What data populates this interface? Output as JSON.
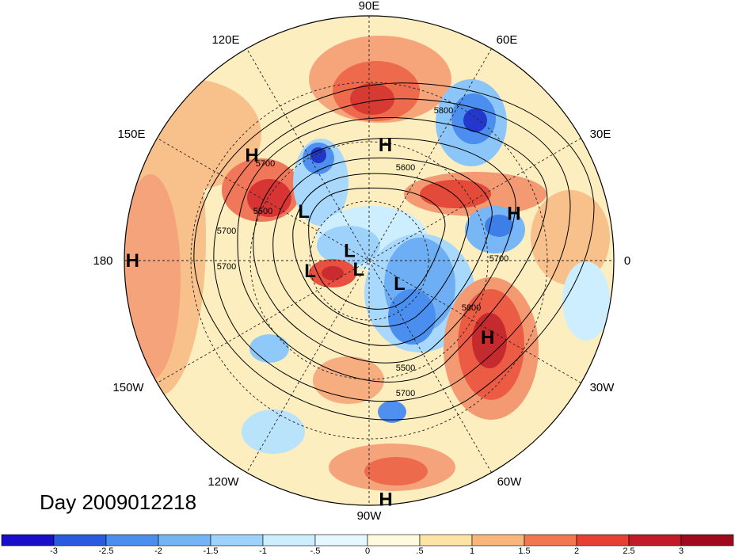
{
  "title": "Day 2009012218",
  "longitude_labels": [
    "90E",
    "60E",
    "30E",
    "0",
    "30W",
    "60W",
    "90W",
    "120W",
    "150W",
    "180",
    "150E",
    "120E"
  ],
  "pressure_centers": [
    {
      "label": "H",
      "lon_deg": 82,
      "lat_deg": 47
    },
    {
      "label": "H",
      "lon_deg": 138,
      "lat_deg": 32
    },
    {
      "label": "H",
      "lon_deg": 18,
      "lat_deg": 34
    },
    {
      "label": "H",
      "lon_deg": 180,
      "lat_deg": 3
    },
    {
      "label": "H",
      "lon_deg": -33,
      "lat_deg": 38
    },
    {
      "label": "H",
      "lon_deg": -86,
      "lat_deg": 2
    },
    {
      "label": "L",
      "lon_deg": 143,
      "lat_deg": 60
    },
    {
      "label": "L",
      "lon_deg": 153,
      "lat_deg": 82
    },
    {
      "label": "L",
      "lon_deg": -170,
      "lat_deg": 68
    },
    {
      "label": "L",
      "lon_deg": -140,
      "lat_deg": 85
    },
    {
      "label": "L",
      "lon_deg": -37,
      "lat_deg": 76
    }
  ],
  "contour_labels": [
    "5800",
    "5600",
    "5700",
    "5500",
    "5700",
    "5700",
    "5700",
    "5800",
    "5500",
    "5700"
  ],
  "colorbar": {
    "ticks": [
      "-3",
      "-2.5",
      "-2",
      "-1.5",
      "-1",
      "-.5",
      "0",
      ".5",
      "1",
      "1.5",
      "2",
      "2.5",
      "3"
    ],
    "colors": [
      "#1a0fc8",
      "#2a5ae0",
      "#4a8ef0",
      "#74b4f6",
      "#9fd2fa",
      "#cdeefe",
      "#e6f8ff",
      "#fffadf",
      "#fde4a6",
      "#f9b67a",
      "#f2774e",
      "#e64035",
      "#c11a28",
      "#a10a1e"
    ]
  }
}
